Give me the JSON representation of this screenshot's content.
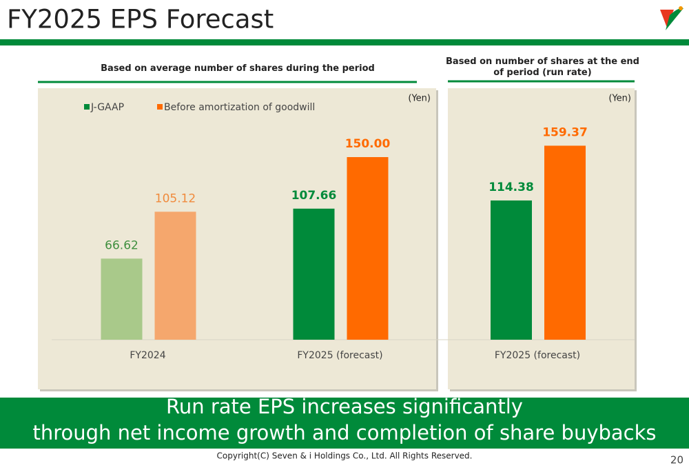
{
  "title": "FY2025 EPS Forecast",
  "banner": [
    "Run rate EPS increases significantly",
    "through net income growth and completion of share buybacks"
  ],
  "copyright": "Copyright(C) Seven & i Holdings Co., Ltd. All Rights Reserved.",
  "page_number": 20,
  "chart_data": [
    {
      "type": "bar",
      "subtitle": "Based on average number of shares during the period",
      "unit": "(Yen)",
      "categories": [
        "FY2024",
        "FY2025 (forecast)"
      ],
      "highlight": [
        false,
        true
      ],
      "ylim": [
        0,
        180
      ],
      "series": [
        {
          "name": "J-GAAP",
          "color": "#008a3a",
          "colors": [
            "#a9c98a",
            "#008a3a"
          ],
          "values": [
            66.62,
            107.66
          ]
        },
        {
          "name": "Before amortization of goodwill",
          "color": "#ff6a00",
          "colors": [
            "#f5a76d",
            "#ff6a00"
          ],
          "values": [
            105.12,
            150.0
          ],
          "value_labels": [
            "105.12",
            "150.00"
          ]
        }
      ]
    },
    {
      "type": "bar",
      "subtitle": "Based on number of shares at the end of period (run rate)",
      "unit": "(Yen)",
      "categories": [
        "FY2025 (forecast)"
      ],
      "highlight": [
        true
      ],
      "ylim": [
        0,
        180
      ],
      "series": [
        {
          "color": "#008a3a",
          "colors": [
            "#008a3a"
          ],
          "values": [
            114.38
          ]
        },
        {
          "color": "#ff6a00",
          "colors": [
            "#ff6a00"
          ],
          "values": [
            159.37
          ]
        }
      ]
    }
  ]
}
